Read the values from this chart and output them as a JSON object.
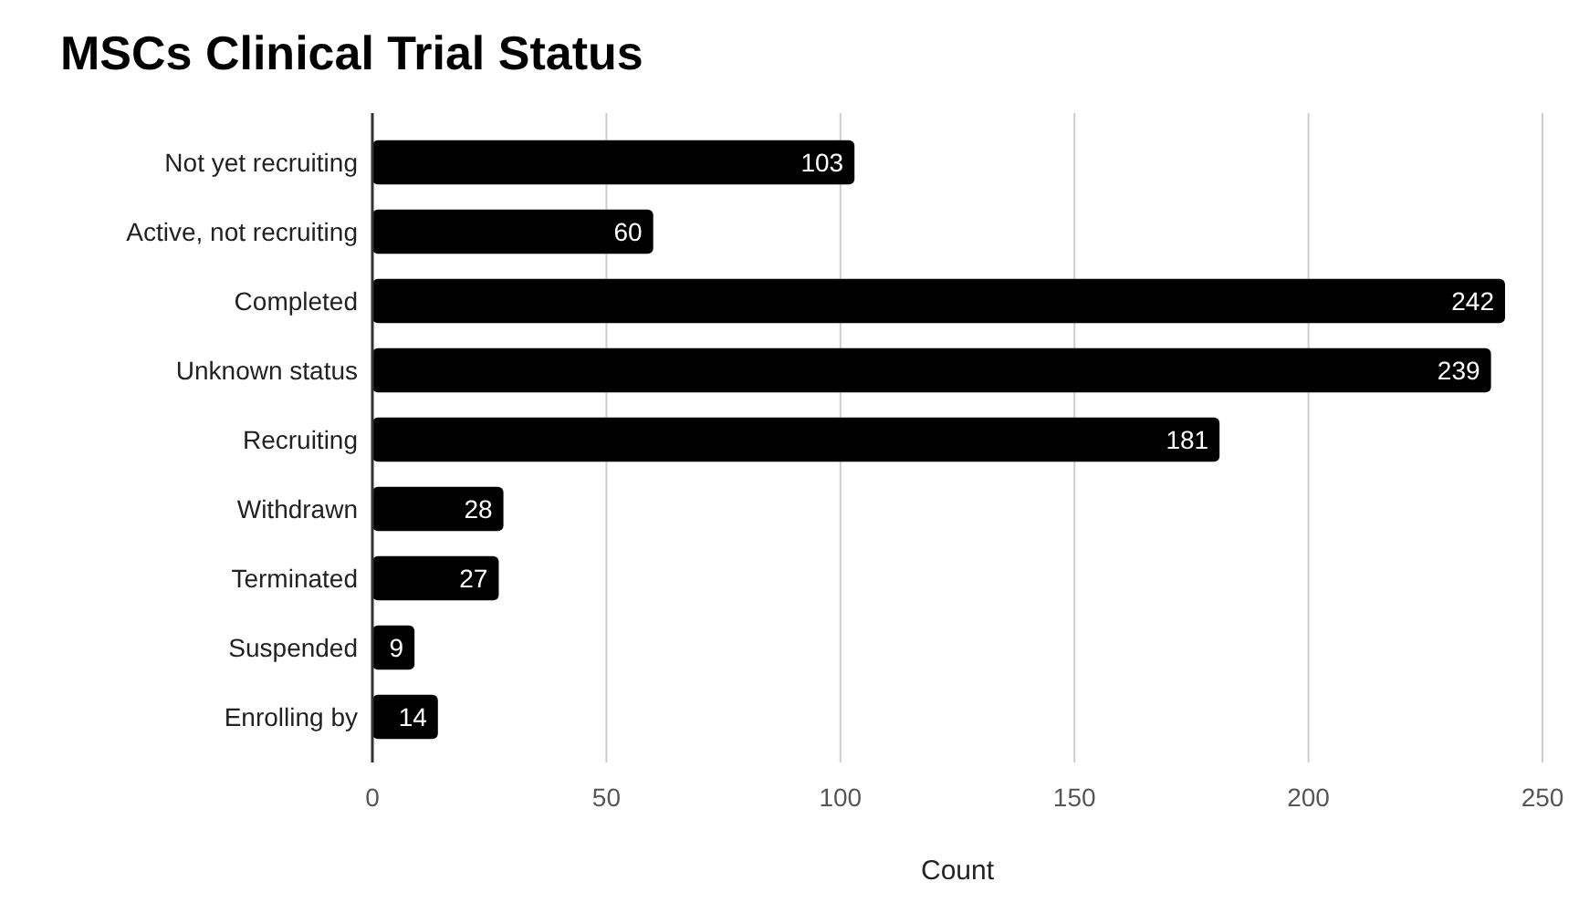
{
  "chart_data": {
    "type": "bar",
    "orientation": "horizontal",
    "title": "MSCs Clinical Trial Status",
    "xlabel": "Count",
    "categories": [
      "Not yet recruiting",
      "Active, not recruiting",
      "Completed",
      "Unknown status",
      "Recruiting",
      "Withdrawn",
      "Terminated",
      "Suspended",
      "Enrolling by"
    ],
    "values": [
      103,
      60,
      242,
      239,
      181,
      28,
      27,
      9,
      14
    ],
    "color": "#000000",
    "xlim": [
      0,
      250
    ],
    "xticks": [
      0,
      50,
      100,
      150,
      200,
      250
    ],
    "grid": "x",
    "data_labels": true
  }
}
